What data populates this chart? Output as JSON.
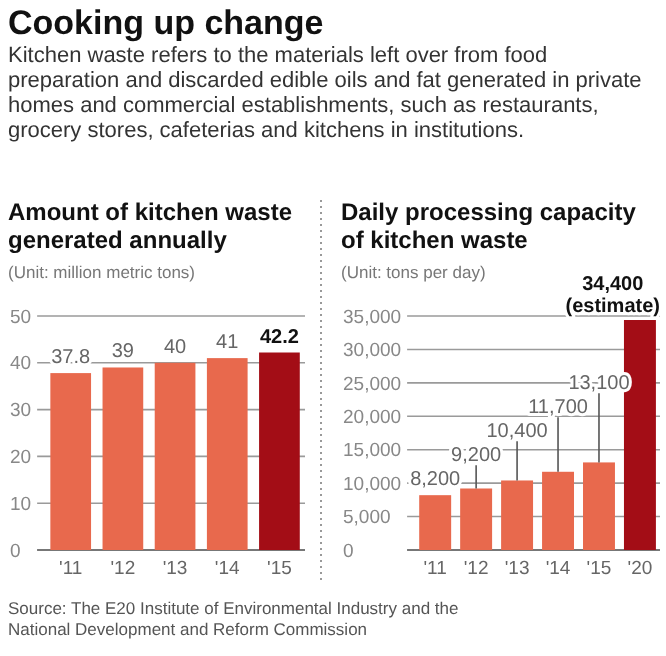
{
  "chart_data": [
    {
      "type": "other",
      "title": "Cooking up change",
      "subtitle": "Kitchen waste refers to the materials left over from food preparation and discarded edible oils and fat generated in private homes and commercial establishments, such as restaurants, grocery stores, cafeterias and kitchens in institutions.",
      "annotations": [
        "Source: The E20 Institute of Environmental Industry and the National Development and Reform Commission"
      ]
    },
    {
      "type": "bar",
      "title": "Amount of kitchen waste generated annually",
      "subtitle": "(Unit: million metric tons)",
      "categories": [
        "'11",
        "'12",
        "'13",
        "'14",
        "'15"
      ],
      "values": [
        37.8,
        39,
        40,
        41,
        42.2
      ],
      "colors": [
        "#e8694d",
        "#e8694d",
        "#e8694d",
        "#e8694d",
        "#a30d16"
      ],
      "ylim": [
        0,
        50
      ],
      "yticks": [
        0,
        10,
        20,
        30,
        40,
        50
      ],
      "grid": "y",
      "data_labels": true
    },
    {
      "type": "bar",
      "title": "Daily processing capacity of kitchen waste",
      "subtitle": "(Unit: tons per day)",
      "categories": [
        "'11",
        "'12",
        "'13",
        "'14",
        "'15",
        "'20"
      ],
      "values": [
        8200,
        9200,
        10400,
        11700,
        13100,
        34400
      ],
      "colors": [
        "#e8694d",
        "#e8694d",
        "#e8694d",
        "#e8694d",
        "#e8694d",
        "#a30d16"
      ],
      "ylim": [
        0,
        35000
      ],
      "yticks": [
        0,
        {
          "value": 5000,
          "label": "5,000"
        },
        {
          "value": 10000,
          "label": "10,000"
        },
        {
          "value": 15000,
          "label": "15,000"
        },
        {
          "value": 20000,
          "label": "20,000"
        },
        {
          "value": 25000,
          "label": "25,000"
        },
        {
          "value": 30000,
          "label": "30,000"
        },
        {
          "value": 35000,
          "label": "35,000"
        }
      ],
      "grid": "y",
      "value_labels": [
        "8,200",
        "9,200",
        "10,400",
        "11,700",
        "13,100",
        "34,400 (estimate)"
      ]
    }
  ]
}
